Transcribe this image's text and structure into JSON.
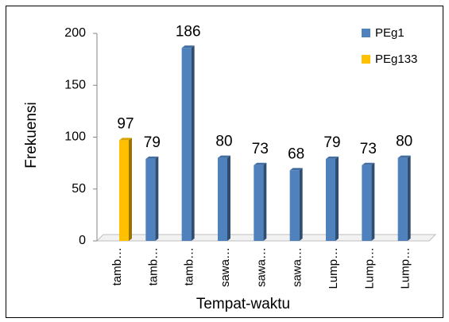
{
  "chart_data": {
    "type": "bar",
    "categories": [
      "tamb…",
      "tamb…",
      "tamb…",
      "sawa…",
      "sawa…",
      "sawa…",
      "Lump…",
      "Lump…",
      "Lump…"
    ],
    "series": [
      {
        "name": "PEg1",
        "color": "#4f81bd",
        "values": [
          null,
          79,
          186,
          80,
          73,
          68,
          79,
          73,
          80
        ]
      },
      {
        "name": "PEg133",
        "color": "#ffc000",
        "values": [
          97,
          null,
          null,
          null,
          null,
          null,
          null,
          null,
          null
        ]
      }
    ],
    "xlabel": "Tempat-waktu",
    "ylabel": "Frekuensi",
    "ylim": [
      0,
      200
    ],
    "yticks": [
      0,
      50,
      100,
      150,
      200
    ],
    "legend": "top-right"
  }
}
